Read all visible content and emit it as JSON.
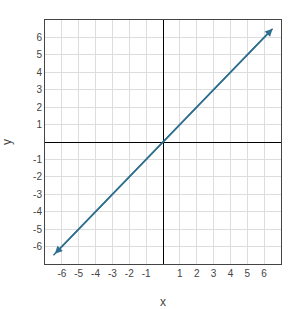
{
  "chart_data": {
    "type": "line",
    "x": [
      -6.5,
      6.5
    ],
    "values": [
      -6.5,
      6.5
    ],
    "color": "#2e6e8e",
    "xlabel": "x",
    "ylabel": "y",
    "xlim": [
      -7,
      7
    ],
    "ylim": [
      -7,
      7
    ],
    "xticks": [
      -6,
      -5,
      -4,
      -3,
      -2,
      -1,
      1,
      2,
      3,
      4,
      5,
      6
    ],
    "yticks": [
      -6,
      -5,
      -4,
      -3,
      -2,
      -1,
      1,
      2,
      3,
      4,
      5,
      6
    ],
    "grid": true
  }
}
